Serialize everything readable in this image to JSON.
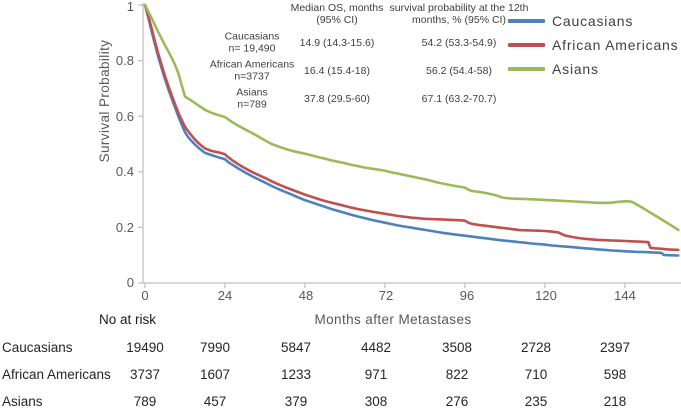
{
  "chart": {
    "y_axis": {
      "title": "Survival Probability",
      "ticks": [
        "0",
        "0.2",
        "0.4",
        "0.6",
        "0.8",
        "1"
      ]
    },
    "x_axis": {
      "title": "Months after Metastases",
      "ticks": [
        "0",
        "24",
        "48",
        "72",
        "96",
        "120",
        "144"
      ]
    },
    "stats_table": {
      "col_headers": [
        "Median OS, months (95% CI)",
        "survival probability at the 12th months, % (95% CI)"
      ],
      "rows": [
        {
          "group": "Caucasians",
          "n": "n= 19,490",
          "median_os": "14.9 (14.3-15.6)",
          "surv12": "54.2 (53.3-54.9)"
        },
        {
          "group": "African Americans",
          "n": "n=3737",
          "median_os": "16.4 (15.4-18)",
          "surv12": "56.2 (54.4-58)"
        },
        {
          "group": "Asians",
          "n": "n=789",
          "median_os": "37.8 (29.5-60)",
          "surv12": "67.1 (63.2-70.7)"
        }
      ]
    }
  },
  "risk_table": {
    "title": "No at risk",
    "rows": [
      {
        "label": "Caucasians",
        "values": [
          "19490",
          "7990",
          "5847",
          "4482",
          "3508",
          "2728",
          "2397"
        ]
      },
      {
        "label": "African Americans",
        "values": [
          "3737",
          "1607",
          "1233",
          "971",
          "822",
          "710",
          "598"
        ]
      },
      {
        "label": "Asians",
        "values": [
          "789",
          "457",
          "379",
          "308",
          "276",
          "235",
          "218"
        ]
      }
    ]
  },
  "chart_data": {
    "type": "line",
    "title": "",
    "xlabel": "Months after Metastases",
    "ylabel": "Survival Probability",
    "xlim": [
      0,
      161
    ],
    "ylim": [
      0,
      1
    ],
    "x_ticks": [
      0,
      24,
      48,
      72,
      96,
      120,
      144
    ],
    "y_ticks": [
      0,
      0.2,
      0.4,
      0.6,
      0.8,
      1
    ],
    "grid": false,
    "legend_position": "top-right",
    "axis_color": "#bfbfbf",
    "series": [
      {
        "name": "Caucasians",
        "color": "#4f81bd",
        "points": [
          [
            0,
            1
          ],
          [
            1,
            0.955
          ],
          [
            2,
            0.905
          ],
          [
            3,
            0.858
          ],
          [
            4,
            0.813
          ],
          [
            5,
            0.772
          ],
          [
            6,
            0.733
          ],
          [
            7,
            0.698
          ],
          [
            8,
            0.664
          ],
          [
            9,
            0.632
          ],
          [
            10,
            0.6
          ],
          [
            11,
            0.57
          ],
          [
            12,
            0.542
          ],
          [
            13,
            0.524
          ],
          [
            14,
            0.51
          ],
          [
            15,
            0.498
          ],
          [
            16,
            0.487
          ],
          [
            17,
            0.477
          ],
          [
            18,
            0.468
          ],
          [
            20,
            0.46
          ],
          [
            22,
            0.452
          ],
          [
            24,
            0.445
          ],
          [
            25,
            0.435
          ],
          [
            26,
            0.427
          ],
          [
            28,
            0.412
          ],
          [
            30,
            0.398
          ],
          [
            32,
            0.385
          ],
          [
            34,
            0.373
          ],
          [
            36,
            0.361
          ],
          [
            38,
            0.349
          ],
          [
            40,
            0.338
          ],
          [
            42,
            0.328
          ],
          [
            44,
            0.318
          ],
          [
            46,
            0.308
          ],
          [
            48,
            0.298
          ],
          [
            50,
            0.29
          ],
          [
            52,
            0.282
          ],
          [
            54,
            0.274
          ],
          [
            56,
            0.266
          ],
          [
            58,
            0.259
          ],
          [
            60,
            0.252
          ],
          [
            62,
            0.245
          ],
          [
            64,
            0.239
          ],
          [
            66,
            0.233
          ],
          [
            68,
            0.227
          ],
          [
            70,
            0.222
          ],
          [
            72,
            0.217
          ],
          [
            74,
            0.212
          ],
          [
            76,
            0.207
          ],
          [
            78,
            0.203
          ],
          [
            80,
            0.199
          ],
          [
            82,
            0.195
          ],
          [
            84,
            0.191
          ],
          [
            86,
            0.187
          ],
          [
            88,
            0.183
          ],
          [
            90,
            0.179
          ],
          [
            92,
            0.176
          ],
          [
            94,
            0.173
          ],
          [
            96,
            0.17
          ],
          [
            98,
            0.167
          ],
          [
            100,
            0.164
          ],
          [
            102,
            0.161
          ],
          [
            104,
            0.158
          ],
          [
            106,
            0.155
          ],
          [
            108,
            0.152
          ],
          [
            110,
            0.15
          ],
          [
            112,
            0.147
          ],
          [
            114,
            0.145
          ],
          [
            116,
            0.142
          ],
          [
            118,
            0.14
          ],
          [
            120,
            0.138
          ],
          [
            122,
            0.135
          ],
          [
            124,
            0.133
          ],
          [
            126,
            0.131
          ],
          [
            128,
            0.129
          ],
          [
            130,
            0.127
          ],
          [
            132,
            0.125
          ],
          [
            134,
            0.123
          ],
          [
            136,
            0.121
          ],
          [
            138,
            0.119
          ],
          [
            140,
            0.117
          ],
          [
            142,
            0.116
          ],
          [
            144,
            0.114
          ],
          [
            146,
            0.113
          ],
          [
            148,
            0.112
          ],
          [
            150,
            0.111
          ],
          [
            152,
            0.11
          ],
          [
            154,
            0.109
          ],
          [
            155,
            0.108
          ],
          [
            155.6,
            0.101
          ],
          [
            157,
            0.1
          ],
          [
            160,
            0.099
          ]
        ]
      },
      {
        "name": "African Americans",
        "color": "#c0504d",
        "points": [
          [
            0,
            1
          ],
          [
            1,
            0.96
          ],
          [
            2,
            0.915
          ],
          [
            3,
            0.868
          ],
          [
            4,
            0.824
          ],
          [
            5,
            0.783
          ],
          [
            6,
            0.744
          ],
          [
            7,
            0.709
          ],
          [
            8,
            0.675
          ],
          [
            9,
            0.643
          ],
          [
            10,
            0.613
          ],
          [
            11,
            0.586
          ],
          [
            12,
            0.562
          ],
          [
            13,
            0.545
          ],
          [
            14,
            0.53
          ],
          [
            15,
            0.516
          ],
          [
            16,
            0.504
          ],
          [
            17,
            0.493
          ],
          [
            18,
            0.484
          ],
          [
            20,
            0.475
          ],
          [
            22,
            0.47
          ],
          [
            24,
            0.463
          ],
          [
            25,
            0.452
          ],
          [
            26,
            0.443
          ],
          [
            28,
            0.427
          ],
          [
            30,
            0.413
          ],
          [
            32,
            0.4
          ],
          [
            34,
            0.389
          ],
          [
            36,
            0.378
          ],
          [
            38,
            0.366
          ],
          [
            40,
            0.355
          ],
          [
            42,
            0.345
          ],
          [
            44,
            0.336
          ],
          [
            46,
            0.327
          ],
          [
            48,
            0.318
          ],
          [
            50,
            0.31
          ],
          [
            52,
            0.302
          ],
          [
            54,
            0.295
          ],
          [
            56,
            0.289
          ],
          [
            58,
            0.283
          ],
          [
            60,
            0.277
          ],
          [
            62,
            0.271
          ],
          [
            64,
            0.266
          ],
          [
            66,
            0.261
          ],
          [
            68,
            0.257
          ],
          [
            70,
            0.253
          ],
          [
            72,
            0.249
          ],
          [
            74,
            0.245
          ],
          [
            76,
            0.241
          ],
          [
            78,
            0.238
          ],
          [
            80,
            0.235
          ],
          [
            82,
            0.233
          ],
          [
            84,
            0.231
          ],
          [
            86,
            0.23
          ],
          [
            88,
            0.229
          ],
          [
            90,
            0.228
          ],
          [
            92,
            0.227
          ],
          [
            94,
            0.226
          ],
          [
            96,
            0.224
          ],
          [
            97,
            0.217
          ],
          [
            98,
            0.213
          ],
          [
            100,
            0.209
          ],
          [
            102,
            0.206
          ],
          [
            104,
            0.203
          ],
          [
            106,
            0.2
          ],
          [
            108,
            0.197
          ],
          [
            110,
            0.194
          ],
          [
            112,
            0.191
          ],
          [
            113,
            0.19
          ],
          [
            116,
            0.189
          ],
          [
            118,
            0.188
          ],
          [
            120,
            0.187
          ],
          [
            122,
            0.185
          ],
          [
            124,
            0.182
          ],
          [
            125,
            0.176
          ],
          [
            126,
            0.171
          ],
          [
            128,
            0.166
          ],
          [
            130,
            0.162
          ],
          [
            132,
            0.159
          ],
          [
            134,
            0.157
          ],
          [
            136,
            0.155
          ],
          [
            138,
            0.154
          ],
          [
            140,
            0.153
          ],
          [
            142,
            0.152
          ],
          [
            144,
            0.151
          ],
          [
            146,
            0.15
          ],
          [
            148,
            0.149
          ],
          [
            150,
            0.148
          ],
          [
            151,
            0.147
          ],
          [
            151.6,
            0.127
          ],
          [
            153,
            0.125
          ],
          [
            155,
            0.123
          ],
          [
            157,
            0.121
          ],
          [
            160,
            0.119
          ]
        ]
      },
      {
        "name": "Asians",
        "color": "#9bbb59",
        "points": [
          [
            0,
            1
          ],
          [
            1,
            0.976
          ],
          [
            2,
            0.952
          ],
          [
            3,
            0.927
          ],
          [
            4,
            0.902
          ],
          [
            5,
            0.878
          ],
          [
            6,
            0.855
          ],
          [
            7,
            0.833
          ],
          [
            8,
            0.81
          ],
          [
            9,
            0.785
          ],
          [
            10,
            0.755
          ],
          [
            11,
            0.712
          ],
          [
            12,
            0.671
          ],
          [
            13,
            0.663
          ],
          [
            14,
            0.655
          ],
          [
            15,
            0.647
          ],
          [
            16,
            0.639
          ],
          [
            17,
            0.631
          ],
          [
            18,
            0.623
          ],
          [
            20,
            0.612
          ],
          [
            22,
            0.604
          ],
          [
            24,
            0.597
          ],
          [
            26,
            0.58
          ],
          [
            28,
            0.566
          ],
          [
            30,
            0.553
          ],
          [
            32,
            0.54
          ],
          [
            34,
            0.527
          ],
          [
            36,
            0.513
          ],
          [
            38,
            0.5
          ],
          [
            40,
            0.491
          ],
          [
            42,
            0.483
          ],
          [
            44,
            0.476
          ],
          [
            46,
            0.47
          ],
          [
            48,
            0.465
          ],
          [
            50,
            0.459
          ],
          [
            52,
            0.453
          ],
          [
            54,
            0.447
          ],
          [
            56,
            0.441
          ],
          [
            58,
            0.436
          ],
          [
            60,
            0.431
          ],
          [
            62,
            0.425
          ],
          [
            64,
            0.42
          ],
          [
            66,
            0.415
          ],
          [
            68,
            0.411
          ],
          [
            70,
            0.408
          ],
          [
            72,
            0.404
          ],
          [
            74,
            0.398
          ],
          [
            76,
            0.393
          ],
          [
            78,
            0.388
          ],
          [
            80,
            0.383
          ],
          [
            82,
            0.378
          ],
          [
            84,
            0.373
          ],
          [
            86,
            0.367
          ],
          [
            88,
            0.361
          ],
          [
            90,
            0.356
          ],
          [
            92,
            0.351
          ],
          [
            94,
            0.347
          ],
          [
            96,
            0.343
          ],
          [
            97,
            0.336
          ],
          [
            98,
            0.331
          ],
          [
            100,
            0.328
          ],
          [
            102,
            0.324
          ],
          [
            104,
            0.319
          ],
          [
            106,
            0.313
          ],
          [
            107,
            0.308
          ],
          [
            108,
            0.306
          ],
          [
            110,
            0.304
          ],
          [
            112,
            0.303
          ],
          [
            114,
            0.302
          ],
          [
            116,
            0.301
          ],
          [
            118,
            0.3
          ],
          [
            120,
            0.299
          ],
          [
            123,
            0.297
          ],
          [
            126,
            0.295
          ],
          [
            129,
            0.293
          ],
          [
            132,
            0.291
          ],
          [
            135,
            0.289
          ],
          [
            138,
            0.288
          ],
          [
            140,
            0.289
          ],
          [
            142,
            0.292
          ],
          [
            144,
            0.294
          ],
          [
            145,
            0.294
          ],
          [
            146,
            0.292
          ],
          [
            147,
            0.286
          ],
          [
            148,
            0.279
          ],
          [
            150,
            0.265
          ],
          [
            152,
            0.25
          ],
          [
            154,
            0.236
          ],
          [
            156,
            0.221
          ],
          [
            158,
            0.206
          ],
          [
            160,
            0.191
          ]
        ]
      }
    ]
  }
}
